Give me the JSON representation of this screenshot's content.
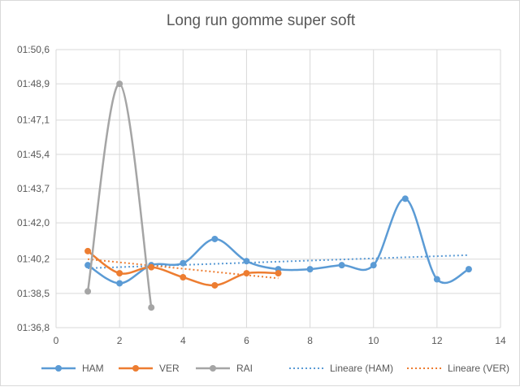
{
  "chart_data": {
    "type": "line",
    "title": "Long run gomme super soft",
    "xlabel": "",
    "ylabel": "",
    "xlim": [
      0,
      14
    ],
    "ylim": [
      96.8,
      110.6
    ],
    "x_ticks": [
      0,
      2,
      4,
      6,
      8,
      10,
      12,
      14
    ],
    "y_ticks": [
      {
        "value": 96.8,
        "label": "01:36,8"
      },
      {
        "value": 98.5,
        "label": "01:38,5"
      },
      {
        "value": 100.2,
        "label": "01:40,2"
      },
      {
        "value": 102.0,
        "label": "01:42,0"
      },
      {
        "value": 103.7,
        "label": "01:43,7"
      },
      {
        "value": 105.4,
        "label": "01:45,4"
      },
      {
        "value": 107.1,
        "label": "01:47,1"
      },
      {
        "value": 108.9,
        "label": "01:48,9"
      },
      {
        "value": 110.6,
        "label": "01:50,6"
      }
    ],
    "grid": "vertical and horizontal",
    "legend_position": "bottom",
    "series": [
      {
        "name": "HAM",
        "color": "#5b9bd5",
        "style": "smooth-marker",
        "x": [
          1,
          2,
          3,
          4,
          5,
          6,
          7,
          8,
          9,
          10,
          11,
          12,
          13
        ],
        "y": [
          99.9,
          99.0,
          99.9,
          100.0,
          101.2,
          100.1,
          99.7,
          99.7,
          99.9,
          99.9,
          103.2,
          99.2,
          99.7
        ]
      },
      {
        "name": "VER",
        "color": "#ed7d31",
        "style": "smooth-marker",
        "x": [
          1,
          2,
          3,
          4,
          5,
          6,
          7
        ],
        "y": [
          100.6,
          99.5,
          99.8,
          99.3,
          98.9,
          99.5,
          99.5
        ]
      },
      {
        "name": "RAI",
        "color": "#a5a5a5",
        "style": "smooth-marker",
        "x": [
          1,
          2,
          3
        ],
        "y": [
          98.6,
          108.9,
          97.8
        ]
      },
      {
        "name": "Lineare (HAM)",
        "color": "#5b9bd5",
        "style": "dotted-trend",
        "x": [
          1,
          13
        ],
        "y": [
          99.75,
          100.4
        ]
      },
      {
        "name": "Lineare (VER)",
        "color": "#ed7d31",
        "style": "dotted-trend",
        "x": [
          1,
          7
        ],
        "y": [
          100.2,
          99.25
        ]
      }
    ]
  }
}
